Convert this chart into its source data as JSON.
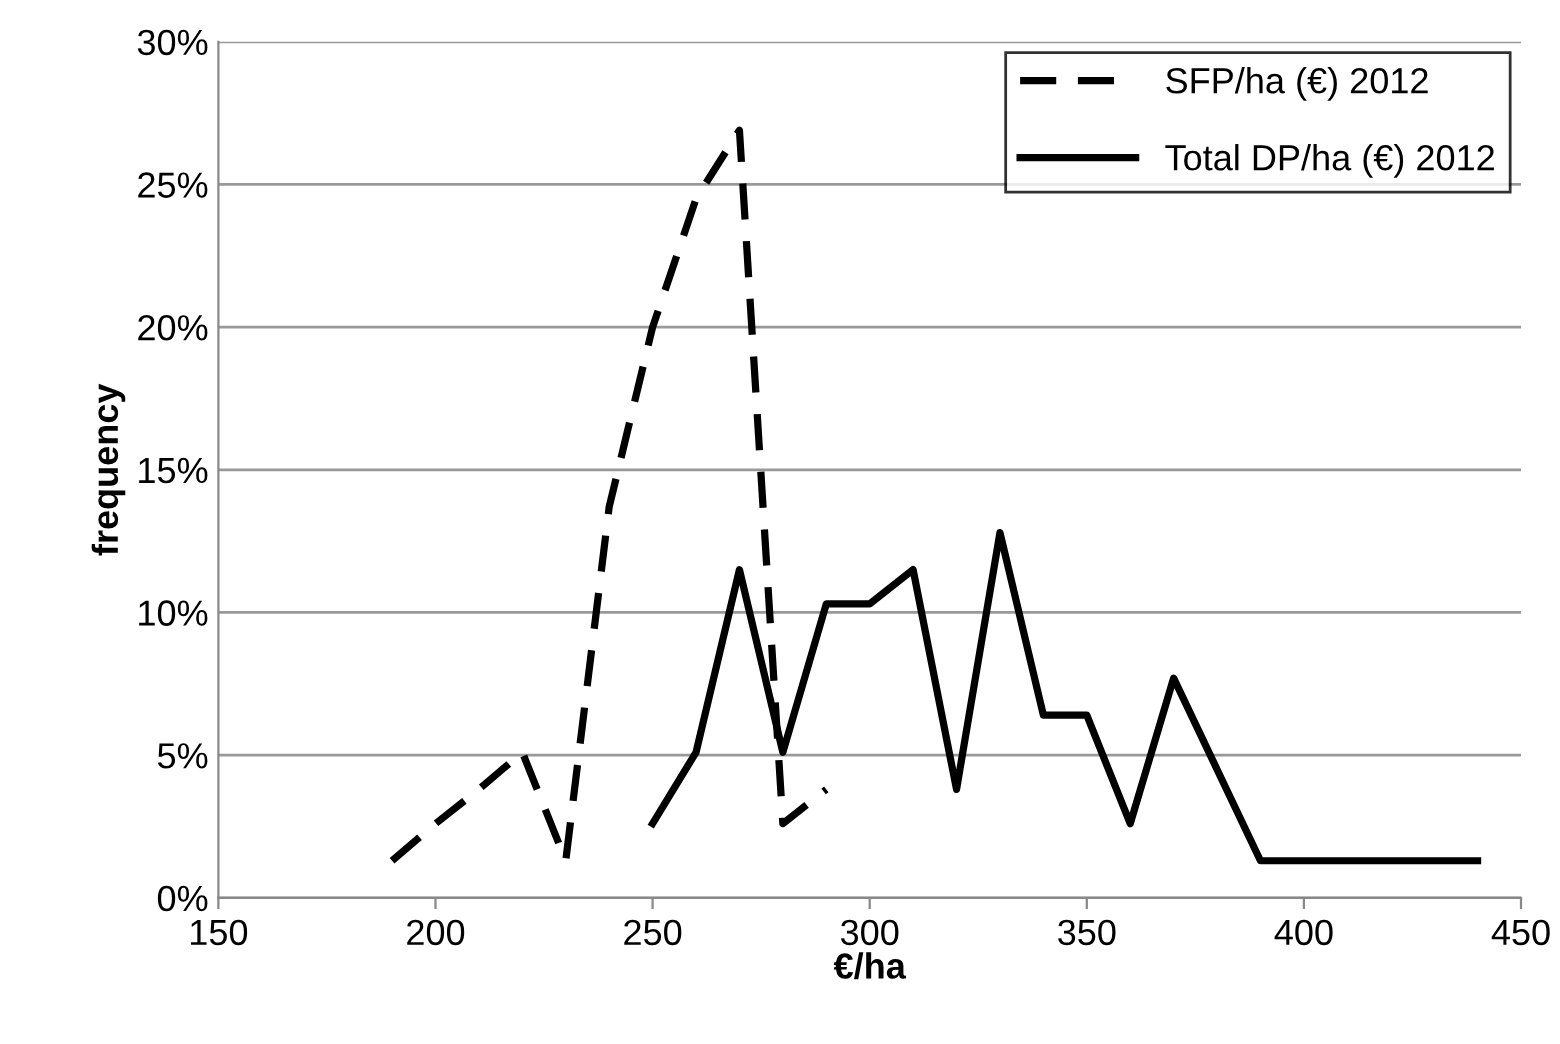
{
  "chart_data": {
    "type": "line",
    "xlabel": "€/ha",
    "ylabel": "frequency",
    "xlim": [
      150,
      450
    ],
    "xticks": [
      150,
      200,
      250,
      300,
      350,
      400,
      450
    ],
    "ylim": [
      0,
      30
    ],
    "yticks": [
      {
        "value": 0,
        "label": "0%"
      },
      {
        "value": 5,
        "label": "5%"
      },
      {
        "value": 10,
        "label": "10%"
      },
      {
        "value": 15,
        "label": "15%"
      },
      {
        "value": 20,
        "label": "20%"
      },
      {
        "value": 25,
        "label": "25%"
      },
      {
        "value": 30,
        "label": "30%"
      }
    ],
    "grid": "y",
    "legend": "top right",
    "marker": "none",
    "series": [
      {
        "name": "SFP/ha (€) 2012",
        "color": "#000000",
        "line_style": "dashed",
        "x": [
          190,
          200,
          210,
          220,
          230,
          240,
          250,
          260,
          270,
          280,
          290
        ],
        "values": [
          1.3,
          2.6,
          3.8,
          5.1,
          1.3,
          13.7,
          20,
          24.5,
          26.9,
          2.6,
          3.8
        ]
      },
      {
        "name": "Total DP/ha (€) 2012",
        "color": "#000000",
        "line_style": "solid",
        "x": [
          250,
          260,
          270,
          280,
          290,
          300,
          310,
          320,
          330,
          340,
          350,
          360,
          370,
          380,
          390,
          400,
          410,
          420,
          430,
          440
        ],
        "values": [
          2.6,
          5.1,
          11.5,
          5.1,
          10.3,
          10.3,
          11.5,
          3.8,
          12.8,
          6.4,
          6.4,
          2.6,
          7.7,
          4.5,
          1.3,
          1.3,
          1.3,
          1.3,
          1.3,
          1.3
        ]
      }
    ]
  }
}
